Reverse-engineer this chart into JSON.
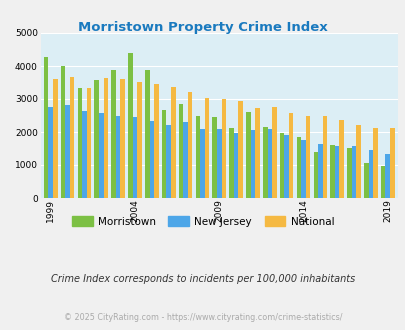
{
  "title": "Morristown Property Crime Index",
  "title_color": "#1a7abf",
  "years": [
    1999,
    2000,
    2001,
    2002,
    2003,
    2004,
    2005,
    2006,
    2007,
    2008,
    2009,
    2010,
    2011,
    2012,
    2013,
    2014,
    2015,
    2016,
    2017,
    2018,
    2019
  ],
  "morristown": [
    4280,
    3990,
    3340,
    3570,
    3870,
    4400,
    3880,
    2680,
    2850,
    2470,
    2450,
    2110,
    2620,
    2160,
    1970,
    1840,
    1390,
    1600,
    1520,
    1070,
    960
  ],
  "new_jersey": [
    2760,
    2830,
    2630,
    2570,
    2490,
    2450,
    2330,
    2220,
    2290,
    2080,
    2100,
    1970,
    2060,
    2100,
    1920,
    1750,
    1640,
    1570,
    1570,
    1450,
    1330
  ],
  "national": [
    3600,
    3680,
    3340,
    3630,
    3620,
    3510,
    3450,
    3360,
    3200,
    3040,
    2990,
    2930,
    2730,
    2760,
    2590,
    2490,
    2490,
    2360,
    2200,
    2130,
    2110
  ],
  "morristown_color": "#7cc044",
  "new_jersey_color": "#4da6e8",
  "national_color": "#f5b942",
  "bg_color": "#f0f0f0",
  "plot_bg": "#dceef5",
  "ylim": [
    0,
    5000
  ],
  "yticks": [
    0,
    1000,
    2000,
    3000,
    4000,
    5000
  ],
  "xtick_years": [
    1999,
    2004,
    2009,
    2014,
    2019
  ],
  "footnote1": "Crime Index corresponds to incidents per 100,000 inhabitants",
  "footnote2": "© 2025 CityRating.com - https://www.cityrating.com/crime-statistics/",
  "legend_labels": [
    "Morristown",
    "New Jersey",
    "National"
  ]
}
